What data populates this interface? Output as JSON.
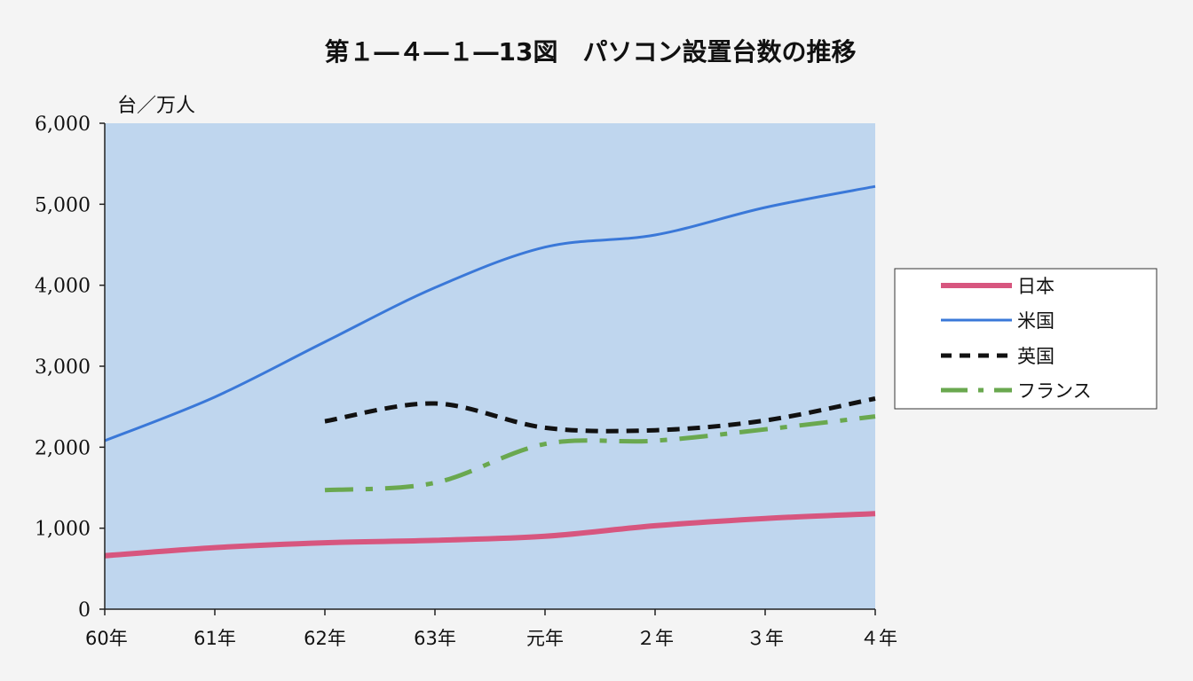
{
  "chart_data": {
    "type": "line",
    "title": "第１―４―１―13図　パソコン設置台数の推移",
    "ylabel": "台／万人",
    "xlabel": "",
    "categories": [
      "60年",
      "61年",
      "62年",
      "63年",
      "元年",
      "２年",
      "３年",
      "４年"
    ],
    "ylim": [
      0,
      6000
    ],
    "yticks": [
      0,
      1000,
      2000,
      3000,
      4000,
      5000,
      6000
    ],
    "ytick_labels": [
      "0",
      "1,000",
      "2,000",
      "3,000",
      "4,000",
      "5,000",
      "6,000"
    ],
    "grid": false,
    "legend_position": "right",
    "series": [
      {
        "name": "日本",
        "color": "#d7567f",
        "style": "thick-solid",
        "values": [
          660,
          760,
          820,
          850,
          900,
          1030,
          1120,
          1180
        ]
      },
      {
        "name": "米国",
        "color": "#3a78d8",
        "style": "solid",
        "values": [
          2080,
          2620,
          3300,
          3970,
          4470,
          4620,
          4960,
          5220
        ]
      },
      {
        "name": "英国",
        "color": "#111111",
        "style": "dashed",
        "values": [
          null,
          null,
          2320,
          2540,
          2240,
          2210,
          2330,
          2600
        ]
      },
      {
        "name": "フランス",
        "color": "#6aa84f",
        "style": "dash-dot",
        "values": [
          null,
          null,
          1470,
          1560,
          2040,
          2080,
          2220,
          2380
        ]
      }
    ]
  }
}
